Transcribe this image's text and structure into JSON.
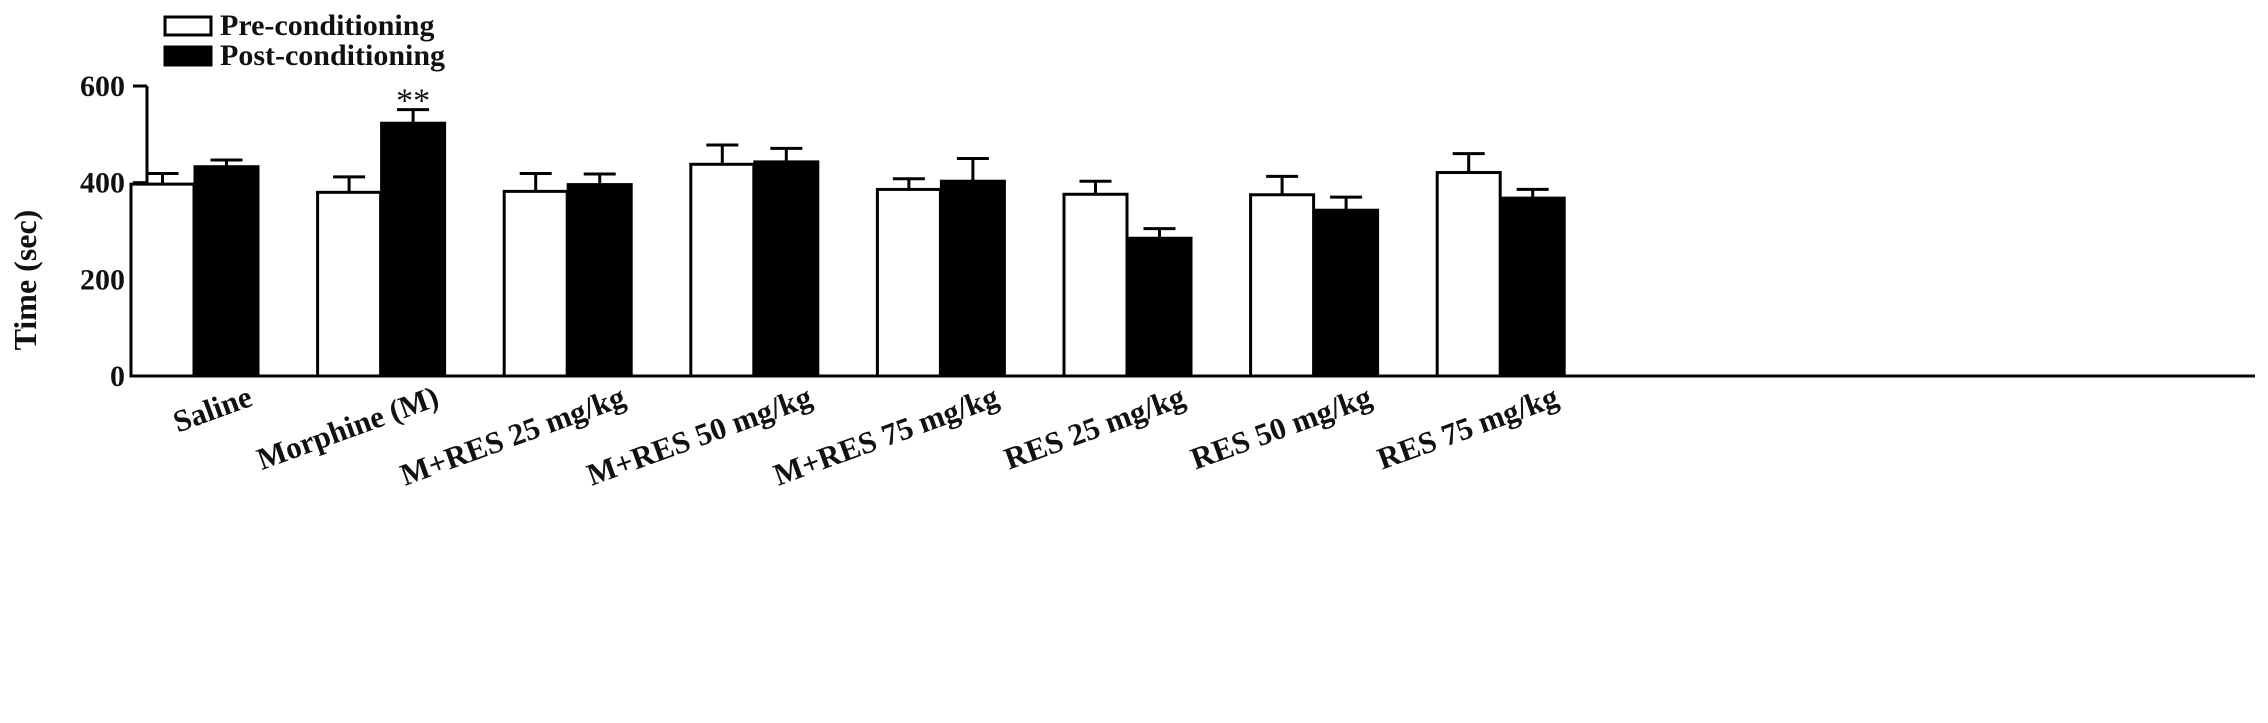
{
  "chart_data": {
    "type": "bar",
    "title": "",
    "xlabel": "",
    "ylabel": "Time (sec)",
    "ylim": [
      0,
      600
    ],
    "yticks": [
      0,
      200,
      400,
      600
    ],
    "grid": false,
    "legend_position": "top-left",
    "categories": [
      "Saline",
      "Morphine (M)",
      "M+RES 25 mg/kg",
      "M+RES 50 mg/kg",
      "M+RES 75 mg/kg",
      "RES 25 mg/kg",
      "RES 50 mg/kg",
      "RES 75 mg/kg"
    ],
    "series": [
      {
        "name": "Pre-conditioning",
        "fill": "#ffffff",
        "values": [
          397,
          380,
          382,
          438,
          386,
          376,
          375,
          421
        ],
        "errors": [
          22,
          32,
          37,
          40,
          22,
          27,
          38,
          39
        ]
      },
      {
        "name": "Post-conditioning",
        "fill": "#000000",
        "values": [
          433,
          523,
          396,
          443,
          403,
          285,
          343,
          368
        ],
        "errors": [
          14,
          28,
          22,
          28,
          47,
          20,
          27,
          18
        ]
      }
    ],
    "annotations": [
      {
        "category": "Morphine (M)",
        "series": "Post-conditioning",
        "text": "**"
      }
    ]
  }
}
